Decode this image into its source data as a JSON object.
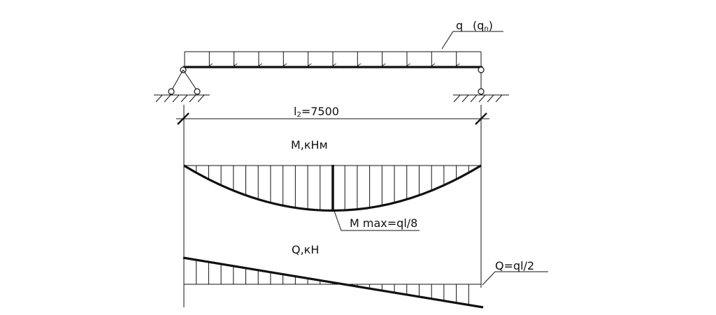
{
  "load": {
    "label_main": "q",
    "label_sub_base": "(q",
    "label_sub_index": "n",
    "label_sub_close": ")"
  },
  "span": {
    "label_base": "l",
    "label_index": "2",
    "label_value": "=7500"
  },
  "moment": {
    "title": "M,кНм",
    "max_label": "M  max=ql/8"
  },
  "shear": {
    "title": "Q,кН",
    "end_label": "Q=ql/2"
  },
  "icons": [
    "pin-support-icon",
    "roller-support-icon",
    "hinge-icon",
    "load-arrow-icon"
  ]
}
